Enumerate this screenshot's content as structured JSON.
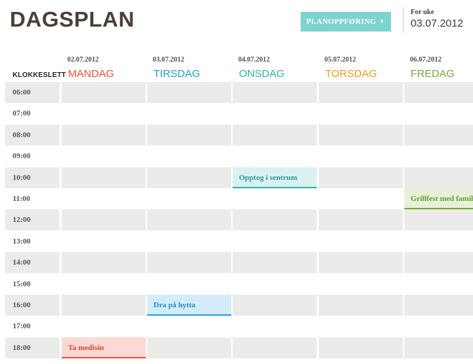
{
  "header": {
    "title": "DAGSPLAN",
    "schedule_button": "PLANOPPFØRING",
    "schedule_button_icon": "chevron-right-icon",
    "week_label": "For uke",
    "week_date": "03.07.2012"
  },
  "grid": {
    "time_header": "KLOKKESLETT",
    "days": [
      {
        "date": "02.07.2012",
        "name": "MANDAG",
        "color": "#e8533a"
      },
      {
        "date": "03.07.2012",
        "name": "TIRSDAG",
        "color": "#1f9fd6"
      },
      {
        "date": "04.07.2012",
        "name": "ONSDAG",
        "color": "#2db2ad"
      },
      {
        "date": "05.07.2012",
        "name": "TORSDAG",
        "color": "#f39a1c"
      },
      {
        "date": "06.07.2012",
        "name": "FREDAG",
        "color": "#79a83a"
      }
    ],
    "times": [
      "06:00",
      "07:00",
      "08:00",
      "09:00",
      "10:00",
      "11:00",
      "12:00",
      "13:00",
      "14:00",
      "15:00",
      "16:00",
      "17:00",
      "18:00"
    ],
    "events": [
      {
        "day": 2,
        "time": "10:00",
        "text": "Opptog i sentrum",
        "bg": "#d9f1f0",
        "border": "#2db2ad",
        "color": "#2a9994"
      },
      {
        "day": 4,
        "time": "11:00",
        "text": "Grillfest med familie",
        "bg": "#e7f0d9",
        "border": "#79a83a",
        "color": "#6b9a33"
      },
      {
        "day": 1,
        "time": "16:00",
        "text": "Dra på hytta",
        "bg": "#d4ecf9",
        "border": "#1f9fd6",
        "color": "#1a8dc2"
      },
      {
        "day": 0,
        "time": "18:00",
        "text": "Ta medisin",
        "bg": "#fbd9d5",
        "border": "#e8533a",
        "color": "#d8442c"
      }
    ]
  }
}
